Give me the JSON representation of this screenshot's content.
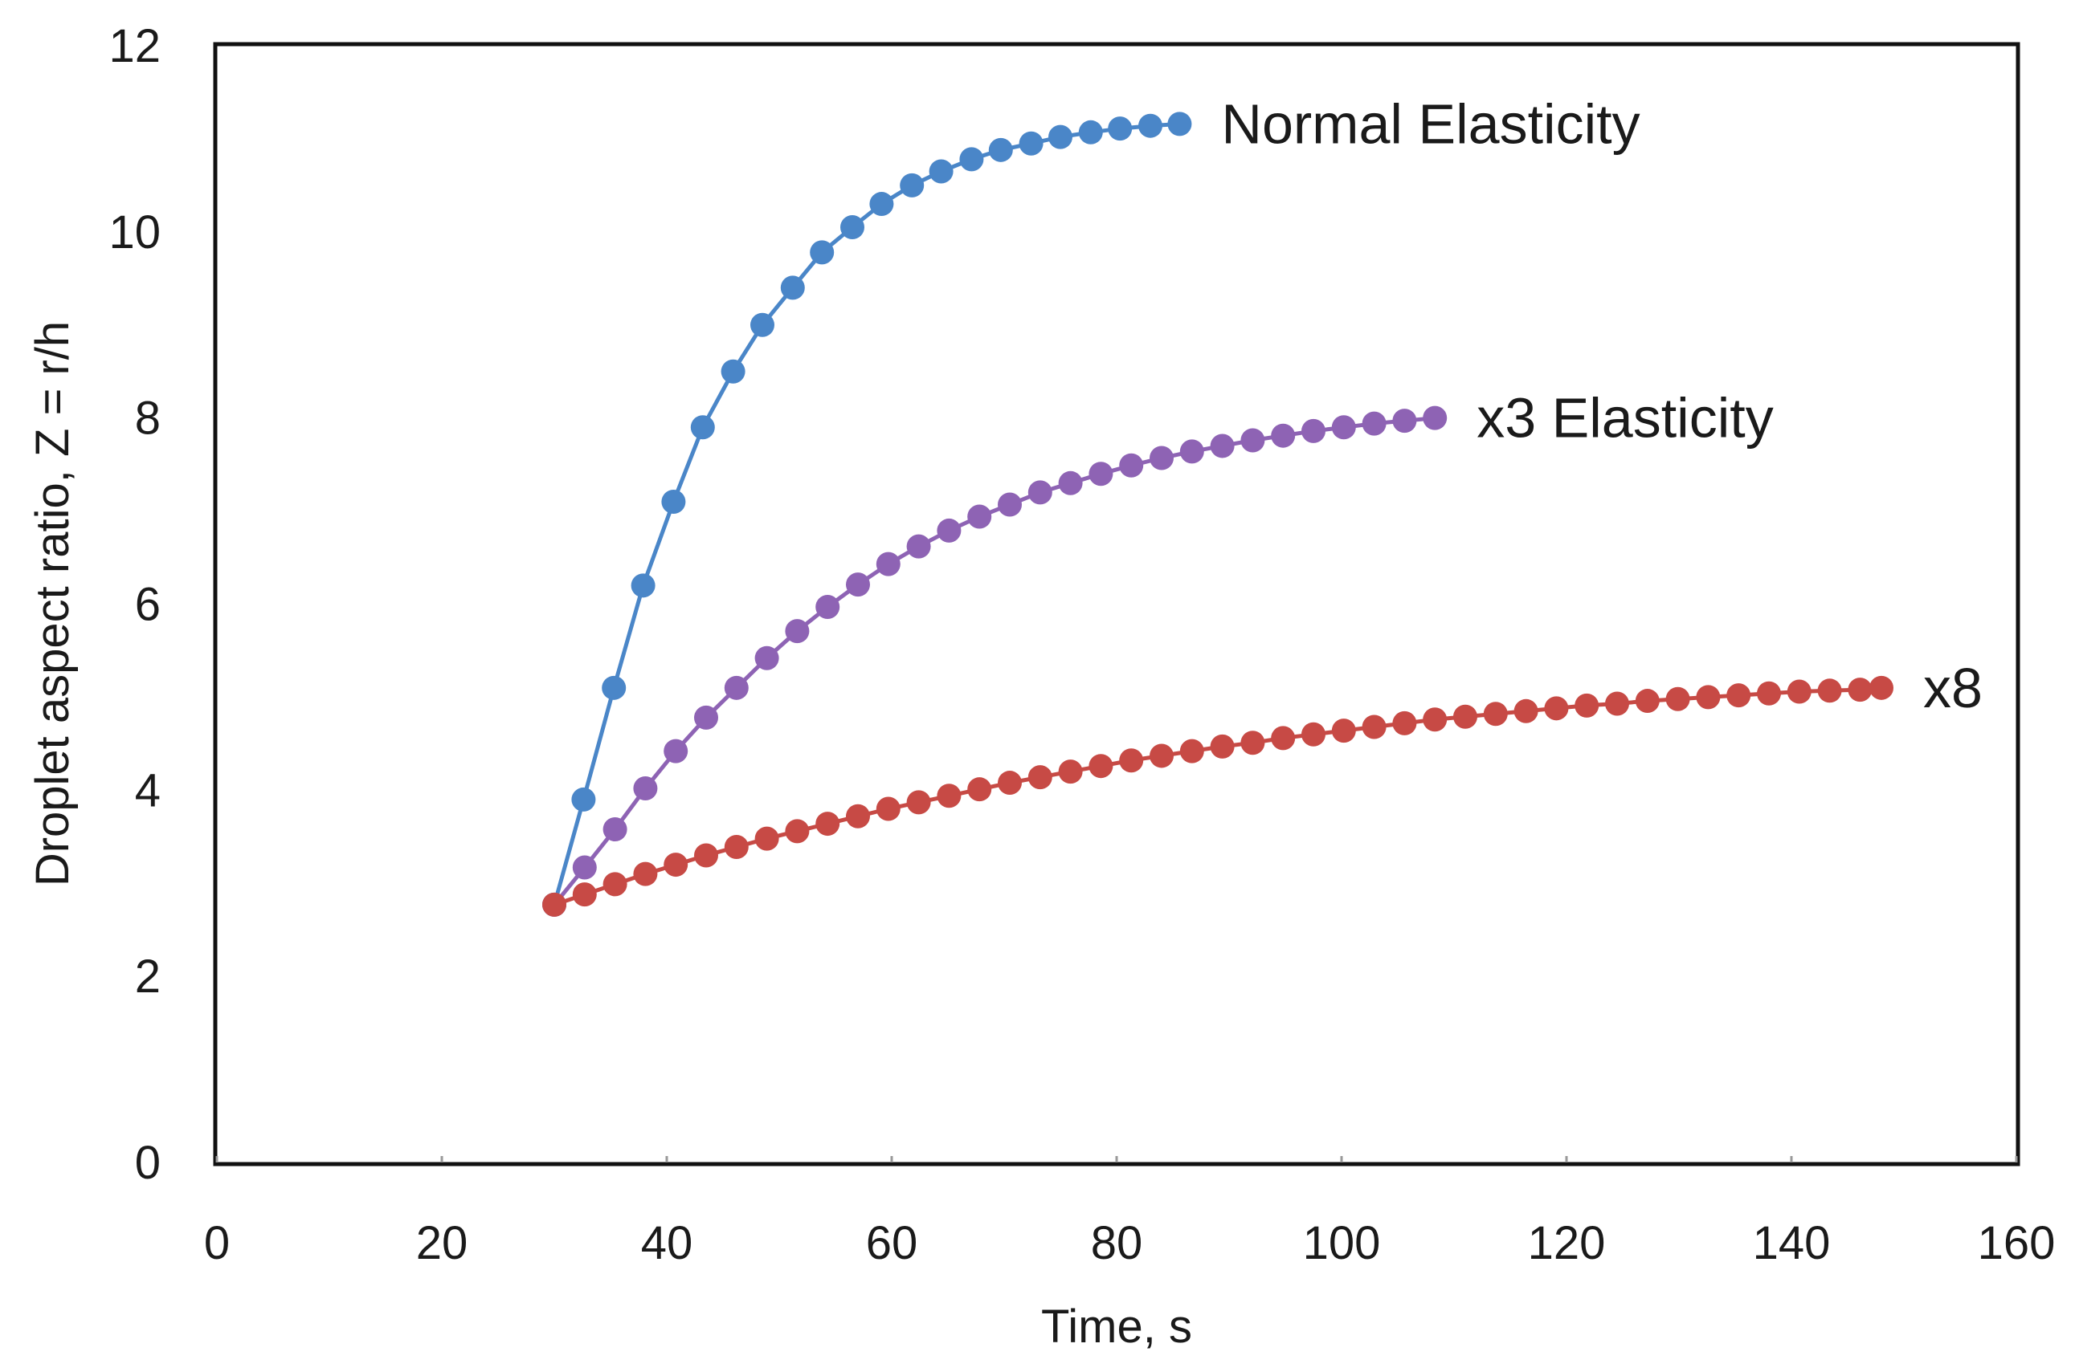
{
  "chart_data": {
    "type": "line",
    "title": "",
    "xlabel": "Time, s",
    "ylabel": "Droplet aspect ratio,  Z = r/h",
    "xlim": [
      0,
      160
    ],
    "ylim": [
      0,
      12
    ],
    "xticks": [
      0,
      20,
      40,
      60,
      80,
      100,
      120,
      140,
      160
    ],
    "yticks": [
      0,
      2,
      4,
      6,
      8,
      10,
      12
    ],
    "grid": false,
    "legend": "inline labels at series ends",
    "series": [
      {
        "name": "Normal Elasticity",
        "color": "#4a86c8",
        "x": [
          30,
          32.6,
          35.3,
          37.9,
          40.6,
          43.2,
          45.9,
          48.5,
          51.2,
          53.8,
          56.5,
          59.1,
          61.8,
          64.4,
          67.1,
          69.7,
          72.4,
          75,
          77.7,
          80.3,
          83,
          85.6
        ],
        "y": [
          2.77,
          3.9,
          5.1,
          6.2,
          7.1,
          7.9,
          8.5,
          9.0,
          9.4,
          9.78,
          10.05,
          10.3,
          10.5,
          10.65,
          10.78,
          10.88,
          10.95,
          11.02,
          11.07,
          11.11,
          11.14,
          11.16
        ]
      },
      {
        "name": "x3 Elasticity",
        "color": "#8e63b4",
        "x": [
          30,
          32.7,
          35.4,
          38.1,
          40.8,
          43.5,
          46.2,
          48.9,
          51.6,
          54.3,
          57,
          59.7,
          62.4,
          65.1,
          67.8,
          70.5,
          73.2,
          75.9,
          78.6,
          81.3,
          84,
          86.7,
          89.4,
          92.1,
          94.8,
          97.5,
          100.2,
          102.9,
          105.6,
          108.3
        ],
        "y": [
          2.77,
          3.17,
          3.58,
          4.02,
          4.42,
          4.78,
          5.1,
          5.42,
          5.71,
          5.97,
          6.21,
          6.43,
          6.62,
          6.79,
          6.94,
          7.07,
          7.2,
          7.3,
          7.4,
          7.49,
          7.57,
          7.64,
          7.7,
          7.76,
          7.81,
          7.86,
          7.9,
          7.94,
          7.97,
          8.0
        ]
      },
      {
        "name": "x8",
        "color": "#c74a45",
        "x": [
          30,
          32.7,
          35.4,
          38.1,
          40.8,
          43.5,
          46.2,
          48.9,
          51.6,
          54.3,
          57,
          59.7,
          62.4,
          65.1,
          67.8,
          70.5,
          73.2,
          75.9,
          78.6,
          81.3,
          84,
          86.7,
          89.4,
          92.1,
          94.8,
          97.5,
          100.2,
          102.9,
          105.6,
          108.3,
          111,
          113.7,
          116.4,
          119.1,
          121.8,
          124.5,
          127.2,
          129.9,
          132.6,
          135.3,
          138,
          140.7,
          143.4,
          146.1,
          148
        ],
        "y": [
          2.77,
          2.88,
          2.99,
          3.1,
          3.2,
          3.3,
          3.39,
          3.48,
          3.56,
          3.64,
          3.72,
          3.8,
          3.87,
          3.94,
          4.01,
          4.08,
          4.14,
          4.2,
          4.26,
          4.32,
          4.37,
          4.42,
          4.47,
          4.51,
          4.56,
          4.6,
          4.64,
          4.68,
          4.72,
          4.76,
          4.79,
          4.82,
          4.85,
          4.88,
          4.91,
          4.93,
          4.96,
          4.98,
          5.0,
          5.02,
          5.04,
          5.06,
          5.07,
          5.08,
          5.1
        ]
      }
    ]
  }
}
